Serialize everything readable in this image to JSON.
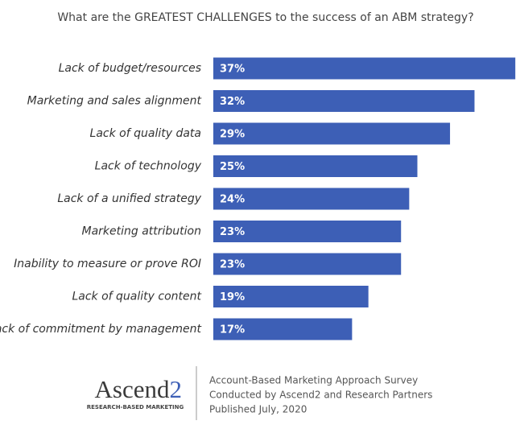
{
  "chart_data": {
    "type": "bar",
    "orientation": "horizontal",
    "title": "What are the GREATEST CHALLENGES to the success of an ABM strategy?",
    "categories": [
      "Lack of budget/resources",
      "Marketing and sales alignment",
      "Lack of quality data",
      "Lack of technology",
      "Lack of a unified strategy",
      "Marketing attribution",
      "Inability to measure or prove ROI",
      "Lack of quality content",
      "Lack of commitment by management"
    ],
    "values": [
      37,
      32,
      29,
      25,
      24,
      23,
      23,
      19,
      17
    ],
    "value_labels": [
      "37%",
      "32%",
      "29%",
      "25%",
      "24%",
      "23%",
      "23%",
      "19%",
      "17%"
    ],
    "color": "#3d5fb6"
  },
  "footer": {
    "logo_name": "Ascend",
    "logo_number": "2",
    "logo_tagline": "RESEARCH-BASED MARKETING",
    "lines": [
      "Account-Based Marketing Approach Survey",
      "Conducted by Ascend2 and Research Partners",
      "Published July, 2020"
    ]
  }
}
